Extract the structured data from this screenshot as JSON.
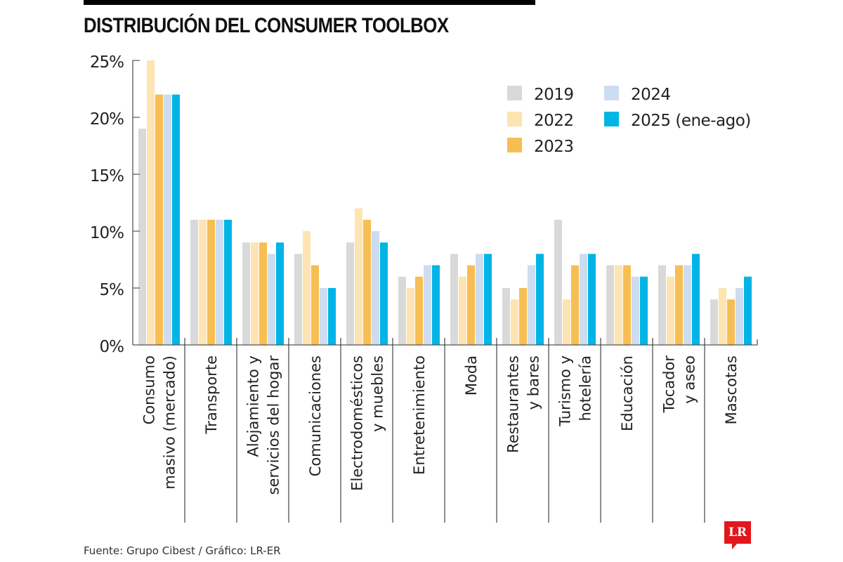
{
  "title": "DISTRIBUCIÓN DEL CONSUMER TOOLBOX",
  "source": "Fuente: Grupo Cibest / Gráfico: LR-ER",
  "logo": "LR",
  "chart_data": {
    "type": "bar",
    "title": "DISTRIBUCIÓN DEL CONSUMER TOOLBOX",
    "xlabel": "",
    "ylabel": "",
    "ylim": [
      0,
      25
    ],
    "yticks": [
      0,
      5,
      10,
      15,
      20,
      25
    ],
    "ytick_labels": [
      "0%",
      "5%",
      "10%",
      "15%",
      "20%",
      "25%"
    ],
    "grid": false,
    "legend_position": "top-right",
    "categories": [
      [
        "Consumo",
        "masivo (mercado)"
      ],
      [
        "Transporte"
      ],
      [
        "Alojamiento y",
        "servicios del hogar"
      ],
      [
        "Comunicaciones"
      ],
      [
        "Electrodomésticos",
        "y muebles"
      ],
      [
        "Entretenimiento"
      ],
      [
        "Moda"
      ],
      [
        "Restaurantes",
        "y bares"
      ],
      [
        "Turismo y",
        "hotelería"
      ],
      [
        "Educación"
      ],
      [
        "Tocador",
        "y aseo"
      ],
      [
        "Mascotas"
      ]
    ],
    "series": [
      {
        "name": "2019",
        "color": "#d9d9d9",
        "values": [
          19,
          11,
          9,
          8,
          9,
          6,
          8,
          5,
          11,
          7,
          7,
          4
        ]
      },
      {
        "name": "2022",
        "color": "#fde4b0",
        "values": [
          25,
          11,
          9,
          10,
          12,
          5,
          6,
          4,
          4,
          7,
          6,
          5
        ]
      },
      {
        "name": "2023",
        "color": "#f6be53",
        "values": [
          22,
          11,
          9,
          7,
          11,
          6,
          7,
          5,
          7,
          7,
          7,
          4
        ]
      },
      {
        "name": "2024",
        "color": "#cddcf0",
        "values": [
          22,
          11,
          8,
          5,
          10,
          7,
          8,
          7,
          8,
          6,
          7,
          5
        ]
      },
      {
        "name": "2025 (ene-ago)",
        "color": "#00b4e6",
        "values": [
          22,
          11,
          9,
          5,
          9,
          7,
          8,
          8,
          8,
          6,
          8,
          6
        ]
      }
    ]
  }
}
